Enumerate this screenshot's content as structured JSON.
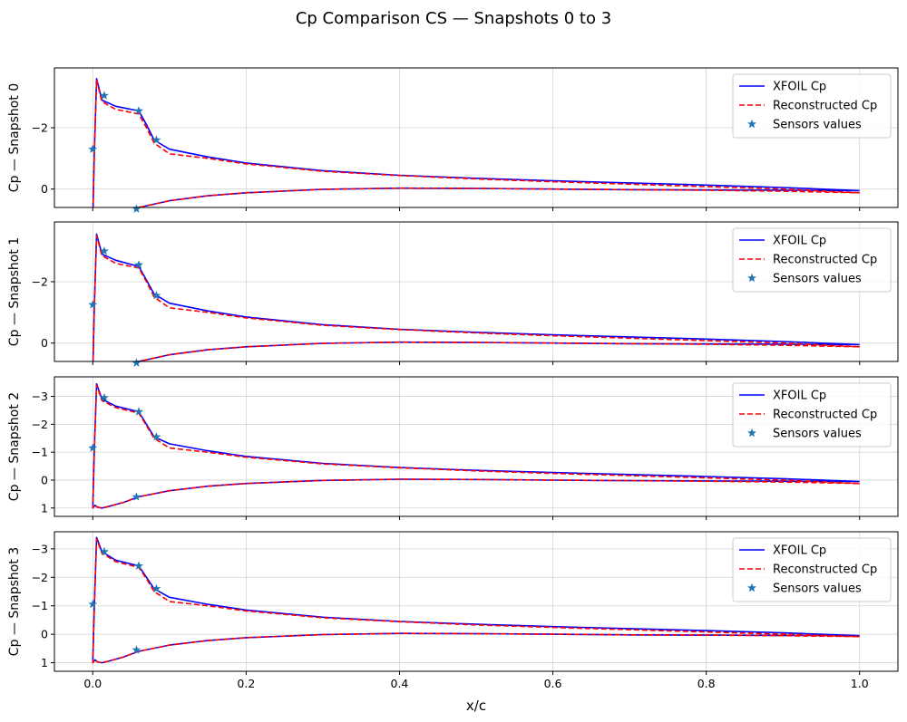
{
  "figure": {
    "title": "Cp Comparison CS — Snapshots 0 to 3",
    "xlabel": "x/c"
  },
  "colors": {
    "xfoil": "#0000ff",
    "reconstructed": "#ff0000",
    "sensors": "#1f77b4",
    "grid": "#d3d3d3",
    "axes": "#000000"
  },
  "legend": {
    "placement": "top-right",
    "entries": [
      "XFOIL Cp",
      "Reconstructed Cp",
      "Sensors values"
    ]
  },
  "chart_data": [
    {
      "type": "line",
      "ylabel": "Cp — Snapshot 0",
      "xlim": [
        -0.05,
        1.05
      ],
      "ylim": [
        0.6,
        -3.95
      ],
      "y_inverted": true,
      "grid": true,
      "x_ticks": [
        0.0,
        0.2,
        0.4,
        0.6,
        0.8,
        1.0
      ],
      "y_ticks": [
        -2,
        0
      ],
      "y_tick_labels": [
        "−2",
        "0"
      ],
      "series": [
        {
          "name": "XFOIL Cp",
          "style": "solid",
          "upper": {
            "x": [
              0.0,
              0.002,
              0.005,
              0.012,
              0.03,
              0.06,
              0.07,
              0.08,
              0.1,
              0.15,
              0.2,
              0.3,
              0.4,
              0.5,
              0.6,
              0.7,
              0.8,
              0.9,
              1.0
            ],
            "y": [
              1.0,
              -1.2,
              -3.6,
              -2.9,
              -2.7,
              -2.55,
              -2.1,
              -1.6,
              -1.3,
              -1.05,
              -0.85,
              -0.6,
              -0.45,
              -0.35,
              -0.27,
              -0.2,
              -0.13,
              -0.05,
              0.05
            ]
          },
          "lower": {
            "x": [
              0.0,
              0.003,
              0.006,
              0.012,
              0.02,
              0.04,
              0.06,
              0.1,
              0.15,
              0.2,
              0.3,
              0.4,
              0.5,
              0.6,
              0.7,
              0.8,
              0.9,
              1.0
            ],
            "y": [
              1.0,
              0.9,
              0.97,
              1.0,
              0.95,
              0.8,
              0.6,
              0.38,
              0.22,
              0.12,
              0.01,
              -0.03,
              -0.02,
              0.0,
              0.02,
              0.03,
              0.04,
              0.05
            ]
          }
        },
        {
          "name": "Reconstructed Cp",
          "style": "dashed",
          "upper": {
            "x": [
              0.0,
              0.002,
              0.005,
              0.012,
              0.03,
              0.06,
              0.07,
              0.08,
              0.1,
              0.15,
              0.2,
              0.3,
              0.4,
              0.5,
              0.6,
              0.7,
              0.8,
              0.9,
              1.0
            ],
            "y": [
              1.0,
              -1.2,
              -3.55,
              -2.85,
              -2.6,
              -2.45,
              -2.0,
              -1.5,
              -1.15,
              -1.0,
              -0.82,
              -0.58,
              -0.44,
              -0.33,
              -0.24,
              -0.16,
              -0.08,
              0.0,
              0.12
            ]
          },
          "lower": {
            "x": [
              0.0,
              0.003,
              0.006,
              0.012,
              0.02,
              0.04,
              0.06,
              0.1,
              0.15,
              0.2,
              0.3,
              0.4,
              0.5,
              0.6,
              0.7,
              0.8,
              0.9,
              1.0
            ],
            "y": [
              1.0,
              0.9,
              0.97,
              1.0,
              0.95,
              0.8,
              0.6,
              0.38,
              0.22,
              0.12,
              0.01,
              -0.03,
              -0.02,
              0.0,
              0.02,
              0.04,
              0.07,
              0.12
            ]
          }
        }
      ],
      "sensors": {
        "name": "Sensors values",
        "x": [
          0.0,
          0.015,
          0.06,
          0.083,
          0.057
        ],
        "y": [
          -1.3,
          -3.05,
          -2.55,
          -1.6,
          0.65
        ]
      }
    },
    {
      "type": "line",
      "ylabel": "Cp — Snapshot 1",
      "xlim": [
        -0.05,
        1.05
      ],
      "ylim": [
        0.6,
        -3.95
      ],
      "y_inverted": true,
      "grid": true,
      "x_ticks": [
        0.0,
        0.2,
        0.4,
        0.6,
        0.8,
        1.0
      ],
      "y_ticks": [
        -2,
        0
      ],
      "y_tick_labels": [
        "−2",
        "0"
      ],
      "series": [
        {
          "name": "XFOIL Cp",
          "style": "solid",
          "upper": {
            "x": [
              0.0,
              0.002,
              0.005,
              0.012,
              0.03,
              0.06,
              0.07,
              0.08,
              0.1,
              0.15,
              0.2,
              0.3,
              0.4,
              0.5,
              0.6,
              0.7,
              0.8,
              0.9,
              1.0
            ],
            "y": [
              1.0,
              -1.2,
              -3.55,
              -2.9,
              -2.7,
              -2.5,
              -2.05,
              -1.6,
              -1.3,
              -1.05,
              -0.85,
              -0.6,
              -0.45,
              -0.35,
              -0.27,
              -0.2,
              -0.13,
              -0.05,
              0.05
            ]
          },
          "lower": {
            "x": [
              0.0,
              0.003,
              0.006,
              0.012,
              0.02,
              0.04,
              0.06,
              0.1,
              0.15,
              0.2,
              0.3,
              0.4,
              0.5,
              0.6,
              0.7,
              0.8,
              0.9,
              1.0
            ],
            "y": [
              1.0,
              0.9,
              0.97,
              1.0,
              0.95,
              0.8,
              0.6,
              0.38,
              0.22,
              0.12,
              0.01,
              -0.03,
              -0.02,
              0.0,
              0.02,
              0.03,
              0.04,
              0.05
            ]
          }
        },
        {
          "name": "Reconstructed Cp",
          "style": "dashed",
          "upper": {
            "x": [
              0.0,
              0.002,
              0.005,
              0.012,
              0.03,
              0.06,
              0.07,
              0.08,
              0.1,
              0.15,
              0.2,
              0.3,
              0.4,
              0.5,
              0.6,
              0.7,
              0.8,
              0.9,
              1.0
            ],
            "y": [
              1.0,
              -1.2,
              -3.5,
              -2.85,
              -2.6,
              -2.45,
              -2.0,
              -1.5,
              -1.15,
              -1.0,
              -0.82,
              -0.58,
              -0.44,
              -0.33,
              -0.24,
              -0.16,
              -0.08,
              0.0,
              0.12
            ]
          },
          "lower": {
            "x": [
              0.0,
              0.003,
              0.006,
              0.012,
              0.02,
              0.04,
              0.06,
              0.1,
              0.15,
              0.2,
              0.3,
              0.4,
              0.5,
              0.6,
              0.7,
              0.8,
              0.9,
              1.0
            ],
            "y": [
              1.0,
              0.9,
              0.97,
              1.0,
              0.95,
              0.8,
              0.6,
              0.38,
              0.22,
              0.12,
              0.01,
              -0.03,
              -0.02,
              0.0,
              0.02,
              0.04,
              0.07,
              0.12
            ]
          }
        }
      ],
      "sensors": {
        "name": "Sensors values",
        "x": [
          0.0,
          0.015,
          0.06,
          0.083,
          0.057
        ],
        "y": [
          -1.25,
          -3.0,
          -2.55,
          -1.55,
          0.65
        ]
      }
    },
    {
      "type": "line",
      "ylabel": "Cp — Snapshot 2",
      "xlim": [
        -0.05,
        1.05
      ],
      "ylim": [
        1.3,
        -3.7
      ],
      "y_inverted": true,
      "grid": true,
      "x_ticks": [
        0.0,
        0.2,
        0.4,
        0.6,
        0.8,
        1.0
      ],
      "y_ticks": [
        -3,
        -2,
        -1,
        0,
        1
      ],
      "y_tick_labels": [
        "−3",
        "−2",
        "−1",
        "0",
        "1"
      ],
      "series": [
        {
          "name": "XFOIL Cp",
          "style": "solid",
          "upper": {
            "x": [
              0.0,
              0.002,
              0.005,
              0.012,
              0.03,
              0.06,
              0.07,
              0.08,
              0.1,
              0.15,
              0.2,
              0.3,
              0.4,
              0.5,
              0.6,
              0.7,
              0.8,
              0.9,
              1.0
            ],
            "y": [
              1.0,
              -1.1,
              -3.45,
              -2.9,
              -2.65,
              -2.45,
              -2.0,
              -1.55,
              -1.3,
              -1.05,
              -0.85,
              -0.6,
              -0.45,
              -0.35,
              -0.27,
              -0.2,
              -0.13,
              -0.05,
              0.05
            ]
          },
          "lower": {
            "x": [
              0.0,
              0.003,
              0.006,
              0.012,
              0.02,
              0.04,
              0.06,
              0.1,
              0.15,
              0.2,
              0.3,
              0.4,
              0.5,
              0.6,
              0.7,
              0.8,
              0.9,
              1.0
            ],
            "y": [
              1.0,
              0.9,
              0.97,
              1.0,
              0.95,
              0.8,
              0.6,
              0.38,
              0.22,
              0.12,
              0.01,
              -0.03,
              -0.02,
              0.0,
              0.02,
              0.03,
              0.04,
              0.05
            ]
          }
        },
        {
          "name": "Reconstructed Cp",
          "style": "dashed",
          "upper": {
            "x": [
              0.0,
              0.002,
              0.005,
              0.012,
              0.03,
              0.06,
              0.07,
              0.08,
              0.1,
              0.15,
              0.2,
              0.3,
              0.4,
              0.5,
              0.6,
              0.7,
              0.8,
              0.9,
              1.0
            ],
            "y": [
              1.0,
              -1.1,
              -3.4,
              -2.85,
              -2.6,
              -2.4,
              -1.95,
              -1.5,
              -1.15,
              -1.0,
              -0.82,
              -0.58,
              -0.44,
              -0.33,
              -0.24,
              -0.16,
              -0.08,
              0.0,
              0.12
            ]
          },
          "lower": {
            "x": [
              0.0,
              0.003,
              0.006,
              0.012,
              0.02,
              0.04,
              0.06,
              0.1,
              0.15,
              0.2,
              0.3,
              0.4,
              0.5,
              0.6,
              0.7,
              0.8,
              0.9,
              1.0
            ],
            "y": [
              1.0,
              0.9,
              0.97,
              1.0,
              0.95,
              0.8,
              0.6,
              0.38,
              0.22,
              0.12,
              0.01,
              -0.03,
              -0.02,
              0.0,
              0.02,
              0.04,
              0.07,
              0.12
            ]
          }
        }
      ],
      "sensors": {
        "name": "Sensors values",
        "x": [
          0.0,
          0.015,
          0.06,
          0.083,
          0.057
        ],
        "y": [
          -1.15,
          -2.95,
          -2.45,
          -1.55,
          0.6
        ]
      }
    },
    {
      "type": "line",
      "ylabel": "Cp — Snapshot 3",
      "xlim": [
        -0.05,
        1.05
      ],
      "ylim": [
        1.3,
        -3.6
      ],
      "y_inverted": true,
      "grid": true,
      "x_ticks": [
        0.0,
        0.2,
        0.4,
        0.6,
        0.8,
        1.0
      ],
      "x_tick_labels": [
        "0.0",
        "0.2",
        "0.4",
        "0.6",
        "0.8",
        "1.0"
      ],
      "y_ticks": [
        -3,
        -2,
        -1,
        0,
        1
      ],
      "y_tick_labels": [
        "−3",
        "−2",
        "−1",
        "0",
        "1"
      ],
      "series": [
        {
          "name": "XFOIL Cp",
          "style": "solid",
          "upper": {
            "x": [
              0.0,
              0.002,
              0.005,
              0.012,
              0.03,
              0.06,
              0.07,
              0.08,
              0.1,
              0.15,
              0.2,
              0.3,
              0.4,
              0.5,
              0.6,
              0.7,
              0.8,
              0.9,
              1.0
            ],
            "y": [
              1.0,
              -1.0,
              -3.4,
              -2.9,
              -2.6,
              -2.4,
              -2.0,
              -1.6,
              -1.3,
              -1.05,
              -0.85,
              -0.6,
              -0.45,
              -0.35,
              -0.27,
              -0.2,
              -0.13,
              -0.05,
              0.05
            ]
          },
          "lower": {
            "x": [
              0.0,
              0.003,
              0.006,
              0.012,
              0.02,
              0.04,
              0.06,
              0.1,
              0.15,
              0.2,
              0.3,
              0.4,
              0.5,
              0.6,
              0.7,
              0.8,
              0.9,
              1.0
            ],
            "y": [
              1.0,
              0.9,
              0.97,
              1.0,
              0.95,
              0.8,
              0.6,
              0.38,
              0.22,
              0.12,
              0.01,
              -0.03,
              -0.02,
              0.0,
              0.02,
              0.03,
              0.04,
              0.05
            ]
          }
        },
        {
          "name": "Reconstructed Cp",
          "style": "dashed",
          "upper": {
            "x": [
              0.0,
              0.002,
              0.005,
              0.012,
              0.03,
              0.06,
              0.07,
              0.08,
              0.1,
              0.15,
              0.2,
              0.3,
              0.4,
              0.5,
              0.6,
              0.7,
              0.8,
              0.9,
              1.0
            ],
            "y": [
              1.0,
              -1.0,
              -3.35,
              -2.85,
              -2.55,
              -2.35,
              -1.95,
              -1.5,
              -1.15,
              -1.0,
              -0.82,
              -0.58,
              -0.44,
              -0.33,
              -0.24,
              -0.16,
              -0.08,
              0.0,
              0.08
            ]
          },
          "lower": {
            "x": [
              0.0,
              0.003,
              0.006,
              0.012,
              0.02,
              0.04,
              0.06,
              0.1,
              0.15,
              0.2,
              0.3,
              0.4,
              0.5,
              0.6,
              0.7,
              0.8,
              0.9,
              1.0
            ],
            "y": [
              1.0,
              0.9,
              0.97,
              1.0,
              0.95,
              0.8,
              0.6,
              0.38,
              0.22,
              0.12,
              0.01,
              -0.03,
              -0.02,
              0.0,
              0.02,
              0.03,
              0.05,
              0.08
            ]
          }
        }
      ],
      "sensors": {
        "name": "Sensors values",
        "x": [
          0.0,
          0.015,
          0.06,
          0.083,
          0.057
        ],
        "y": [
          -1.05,
          -2.9,
          -2.4,
          -1.6,
          0.55
        ]
      }
    }
  ]
}
